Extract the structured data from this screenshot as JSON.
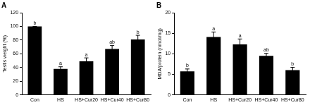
{
  "chart_data": [
    {
      "type": "bar",
      "title": "A",
      "categories": [
        "Con",
        "HS",
        "HS+Cur20",
        "HS+Cur40",
        "HS+Cur80"
      ],
      "values": [
        100,
        38,
        49,
        67,
        81
      ],
      "error": [
        0,
        3,
        5,
        5,
        6
      ],
      "significance": [
        "b",
        "a",
        "a",
        "ab",
        "b"
      ],
      "color": "#000000",
      "y_label": "Testis weight (%)",
      "ylim": [
        0,
        120
      ],
      "yticks": [
        0,
        20,
        40,
        60,
        80,
        100,
        120
      ],
      "grid": false
    },
    {
      "type": "bar",
      "title": "B",
      "categories": [
        "Con",
        "HS",
        "HS+Cur20",
        "HS+Cur40",
        "HS+Cur80"
      ],
      "values": [
        5.7,
        14.1,
        12.3,
        9.5,
        6.0
      ],
      "error": [
        0.6,
        1.2,
        1.3,
        0.6,
        0.7
      ],
      "significance": [
        "b",
        "a",
        "a",
        "ab",
        "b"
      ],
      "color": "#000000",
      "y_label": "MDA/protein (nmol/mg)",
      "ylim": [
        0,
        20
      ],
      "yticks": [
        0,
        5,
        10,
        15,
        20
      ],
      "grid": false
    }
  ]
}
